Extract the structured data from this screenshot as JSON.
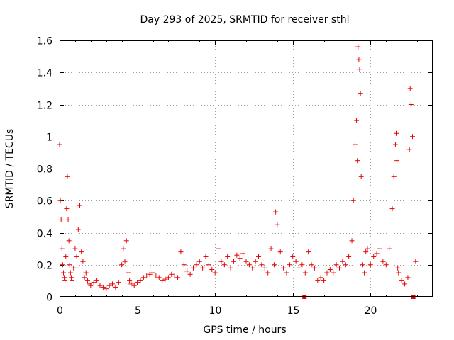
{
  "chart_data": {
    "type": "scatter",
    "title": "Day 293 of 2025, SRMTID for receiver sthl",
    "xlabel": "GPS time / hours",
    "ylabel": "SRMTID / TECUs",
    "xlim": [
      0,
      24
    ],
    "ylim": [
      0,
      1.6
    ],
    "xticks": [
      "0",
      "5",
      "10",
      "15",
      "20"
    ],
    "yticks": [
      "0",
      "0.2",
      "0.4",
      "0.6",
      "0.8",
      "1",
      "1.2",
      "1.4",
      "1.6"
    ],
    "grid": true,
    "marker": "plus",
    "color": "#e60000",
    "series": [
      {
        "name": "SRMTID",
        "x": [
          0.0,
          0.05,
          0.1,
          0.15,
          0.2,
          0.25,
          0.3,
          0.35,
          0.4,
          0.45,
          0.5,
          0.55,
          0.6,
          0.65,
          0.7,
          0.75,
          0.8,
          0.9,
          1.0,
          1.1,
          1.2,
          1.3,
          1.4,
          1.5,
          1.6,
          1.7,
          1.8,
          1.9,
          2.0,
          2.2,
          2.4,
          2.6,
          2.8,
          3.0,
          3.2,
          3.4,
          3.6,
          3.8,
          4.0,
          4.1,
          4.2,
          4.3,
          4.4,
          4.5,
          4.6,
          4.8,
          5.0,
          5.2,
          5.4,
          5.6,
          5.8,
          6.0,
          6.2,
          6.4,
          6.6,
          6.8,
          7.0,
          7.2,
          7.4,
          7.6,
          7.8,
          8.0,
          8.2,
          8.4,
          8.6,
          8.8,
          9.0,
          9.2,
          9.4,
          9.6,
          9.8,
          10.0,
          10.2,
          10.4,
          10.6,
          10.8,
          11.0,
          11.2,
          11.4,
          11.6,
          11.8,
          12.0,
          12.2,
          12.4,
          12.6,
          12.8,
          13.0,
          13.2,
          13.4,
          13.6,
          13.8,
          13.9,
          14.0,
          14.2,
          14.4,
          14.6,
          14.8,
          15.0,
          15.2,
          15.4,
          15.6,
          15.8,
          16.0,
          16.2,
          16.4,
          16.6,
          16.8,
          17.0,
          17.2,
          17.4,
          17.6,
          17.8,
          18.0,
          18.2,
          18.4,
          18.6,
          18.8,
          18.9,
          19.0,
          19.1,
          19.15,
          19.2,
          19.25,
          19.3,
          19.35,
          19.4,
          19.5,
          19.6,
          19.7,
          19.8,
          20.0,
          20.2,
          20.4,
          20.6,
          20.8,
          21.0,
          21.2,
          21.4,
          21.5,
          21.6,
          21.65,
          21.7,
          21.75,
          21.8,
          22.0,
          22.2,
          22.4,
          22.5,
          22.55,
          22.6,
          22.7,
          22.9
        ],
        "y": [
          0.95,
          0.6,
          0.48,
          0.3,
          0.2,
          0.15,
          0.12,
          0.1,
          0.25,
          0.55,
          0.75,
          0.48,
          0.35,
          0.2,
          0.15,
          0.12,
          0.1,
          0.18,
          0.3,
          0.25,
          0.42,
          0.57,
          0.28,
          0.22,
          0.12,
          0.15,
          0.1,
          0.08,
          0.07,
          0.09,
          0.1,
          0.07,
          0.06,
          0.05,
          0.07,
          0.08,
          0.06,
          0.09,
          0.2,
          0.3,
          0.22,
          0.35,
          0.15,
          0.1,
          0.08,
          0.07,
          0.09,
          0.1,
          0.12,
          0.13,
          0.14,
          0.15,
          0.13,
          0.12,
          0.1,
          0.11,
          0.12,
          0.14,
          0.13,
          0.12,
          0.28,
          0.2,
          0.16,
          0.14,
          0.18,
          0.2,
          0.22,
          0.18,
          0.25,
          0.2,
          0.17,
          0.15,
          0.3,
          0.22,
          0.2,
          0.25,
          0.18,
          0.22,
          0.26,
          0.24,
          0.27,
          0.22,
          0.2,
          0.18,
          0.22,
          0.25,
          0.2,
          0.18,
          0.15,
          0.3,
          0.2,
          0.53,
          0.45,
          0.28,
          0.18,
          0.15,
          0.2,
          0.25,
          0.22,
          0.18,
          0.2,
          0.15,
          0.28,
          0.2,
          0.18,
          0.1,
          0.12,
          0.1,
          0.15,
          0.17,
          0.15,
          0.2,
          0.18,
          0.22,
          0.2,
          0.25,
          0.35,
          0.6,
          0.95,
          1.1,
          0.85,
          1.56,
          1.48,
          1.42,
          1.27,
          0.75,
          0.2,
          0.15,
          0.28,
          0.3,
          0.2,
          0.25,
          0.27,
          0.3,
          0.22,
          0.2,
          0.3,
          0.55,
          0.75,
          0.95,
          1.02,
          0.85,
          0.18,
          0.15,
          0.1,
          0.08,
          0.12,
          0.92,
          1.3,
          1.2,
          1.0,
          0.22
        ],
        "x_zero": [
          15.75,
          22.75
        ]
      }
    ]
  }
}
